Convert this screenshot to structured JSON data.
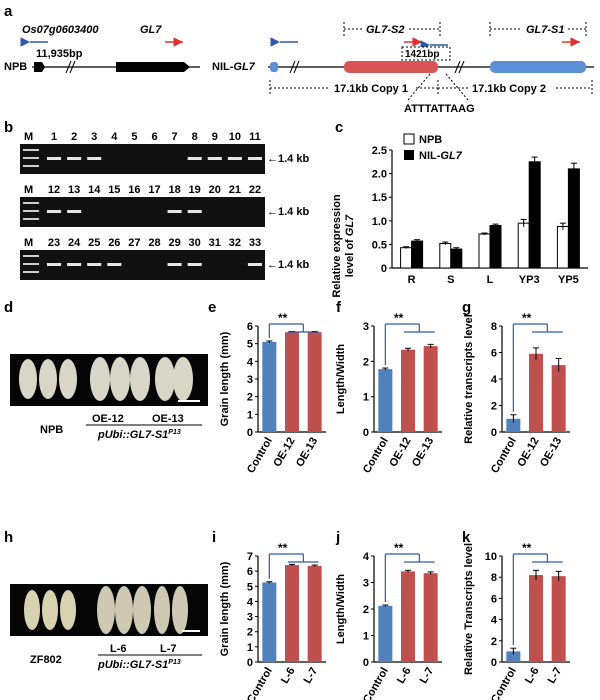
{
  "panel_letters": {
    "a": "a",
    "b": "b",
    "c": "c",
    "d": "d",
    "e": "e",
    "f": "f",
    "g": "g",
    "h": "h",
    "i": "i",
    "j": "j",
    "k": "k"
  },
  "panel_a": {
    "gene_os07": "Os07g0603400",
    "gene_gl7": "GL7",
    "npb_label": "NPB",
    "distance_label": "11,935bp",
    "nil_prefix": "NIL-",
    "nil_gene": "GL7",
    "gl7_s2_label": "GL7-S2",
    "gl7_s1_label": "GL7-S1",
    "size_1421": "1421bp",
    "copy1": "17.1kb Copy 1",
    "copy2": "17.1kb Copy 2",
    "sequence": "ATTTATTAAG",
    "colors": {
      "blue": "#4472c4",
      "red": "#d9534f",
      "box_red": "#d95555",
      "box_blue": "#5b8fd6"
    }
  },
  "panel_b": {
    "row1": {
      "M": "M",
      "lanes": [
        "1",
        "2",
        "3",
        "4",
        "5",
        "6",
        "7",
        "8",
        "9",
        "10",
        "11"
      ],
      "bands": [
        1,
        1,
        1,
        0,
        0,
        0,
        0,
        1,
        1,
        1,
        1
      ]
    },
    "row2": {
      "M": "M",
      "lanes": [
        "12",
        "13",
        "14",
        "15",
        "16",
        "17",
        "18",
        "19",
        "20",
        "21",
        "22"
      ],
      "bands": [
        1,
        1,
        0,
        0,
        0,
        0,
        1,
        1,
        0,
        0,
        0
      ]
    },
    "row3": {
      "M": "M",
      "lanes": [
        "23",
        "24",
        "25",
        "26",
        "27",
        "28",
        "29",
        "30",
        "31",
        "32",
        "33"
      ],
      "bands": [
        1,
        1,
        1,
        1,
        0,
        0,
        1,
        1,
        0,
        0,
        1
      ]
    },
    "size_label": "1.4 kb"
  },
  "panel_c": {
    "chart_data": {
      "type": "bar",
      "categories": [
        "R",
        "S",
        "L",
        "YP3",
        "YP5"
      ],
      "series": [
        {
          "name": "NPB",
          "values": [
            0.43,
            0.52,
            0.72,
            0.95,
            0.88
          ],
          "errors": [
            0.02,
            0.03,
            0.02,
            0.08,
            0.07
          ],
          "color": "#ffffff"
        },
        {
          "name": "NIL-GL7",
          "values": [
            0.57,
            0.4,
            0.9,
            2.25,
            2.1
          ],
          "errors": [
            0.03,
            0.03,
            0.03,
            0.1,
            0.12
          ],
          "color": "#000000"
        }
      ],
      "ylabel_line1": "Relative expression",
      "ylabel_line2": "level of",
      "ylabel_gene": "GL7",
      "ylim": [
        0,
        2.5
      ],
      "yticks": [
        "0",
        "0.5",
        "1.0",
        "1.5",
        "2.0",
        "2.5"
      ],
      "legend_npb": "NPB",
      "legend_nil_prefix": "NIL-",
      "legend_nil_gene": "GL7"
    }
  },
  "panel_d": {
    "sample_npb": "NPB",
    "sample_oe12": "OE-12",
    "sample_oe13": "OE-13",
    "construct_prefix": "pUbi::GL7-S1",
    "construct_sup": "P13"
  },
  "panel_h": {
    "sample_zf": "ZF802",
    "sample_l6": "L-6",
    "sample_l7": "L-7",
    "construct_prefix": "pUbi::GL7-S1",
    "construct_sup": "P13"
  },
  "sig_label": "**",
  "chart_data": [
    {
      "id": "e",
      "type": "bar",
      "categories": [
        "Control",
        "OE-12",
        "OE-13"
      ],
      "values": [
        5.1,
        5.65,
        5.65
      ],
      "errors": [
        0.05,
        0.04,
        0.04
      ],
      "ylabel": "Grain length (mm)",
      "ylim": [
        0,
        6
      ],
      "yticks": [
        "0",
        "1",
        "2",
        "3",
        "4",
        "5",
        "6"
      ]
    },
    {
      "id": "f",
      "type": "bar",
      "categories": [
        "Control",
        "OE-12",
        "OE-13"
      ],
      "values": [
        1.78,
        2.33,
        2.43
      ],
      "errors": [
        0.03,
        0.04,
        0.05
      ],
      "ylabel": "Length/Width",
      "ylim": [
        0,
        3
      ],
      "yticks": [
        "0",
        "1",
        "2",
        "3"
      ]
    },
    {
      "id": "g",
      "type": "bar",
      "categories": [
        "Control",
        "OE-12",
        "OE-13"
      ],
      "values": [
        1.0,
        5.9,
        5.05
      ],
      "errors": [
        0.3,
        0.45,
        0.5
      ],
      "ylabel": "Relative transcripts level",
      "ylim": [
        0,
        8
      ],
      "yticks": [
        "0",
        "2",
        "4",
        "6",
        "8"
      ]
    },
    {
      "id": "i",
      "type": "bar",
      "categories": [
        "Control",
        "L-6",
        "L-7"
      ],
      "values": [
        5.25,
        6.4,
        6.35
      ],
      "errors": [
        0.05,
        0.05,
        0.05
      ],
      "ylabel": "Grain length (mm)",
      "ylim": [
        0,
        7
      ],
      "yticks": [
        "0",
        "1",
        "2",
        "3",
        "4",
        "5",
        "6",
        "7"
      ]
    },
    {
      "id": "j",
      "type": "bar",
      "categories": [
        "Control",
        "L-6",
        "L-7"
      ],
      "values": [
        2.12,
        3.42,
        3.35
      ],
      "errors": [
        0.03,
        0.04,
        0.05
      ],
      "ylabel": "Length/Width",
      "ylim": [
        0,
        4
      ],
      "yticks": [
        "0",
        "1",
        "2",
        "3",
        "4"
      ]
    },
    {
      "id": "k",
      "type": "bar",
      "categories": [
        "Control",
        "L-6",
        "L-7"
      ],
      "values": [
        1.0,
        8.2,
        8.1
      ],
      "errors": [
        0.3,
        0.45,
        0.45
      ],
      "ylabel": "Relative Transcripts level",
      "ylim": [
        0,
        10
      ],
      "yticks": [
        "0",
        "2",
        "4",
        "6",
        "8",
        "10"
      ]
    }
  ],
  "bar_colors": {
    "control": "#4f81bd",
    "treatment": "#c0504d"
  }
}
